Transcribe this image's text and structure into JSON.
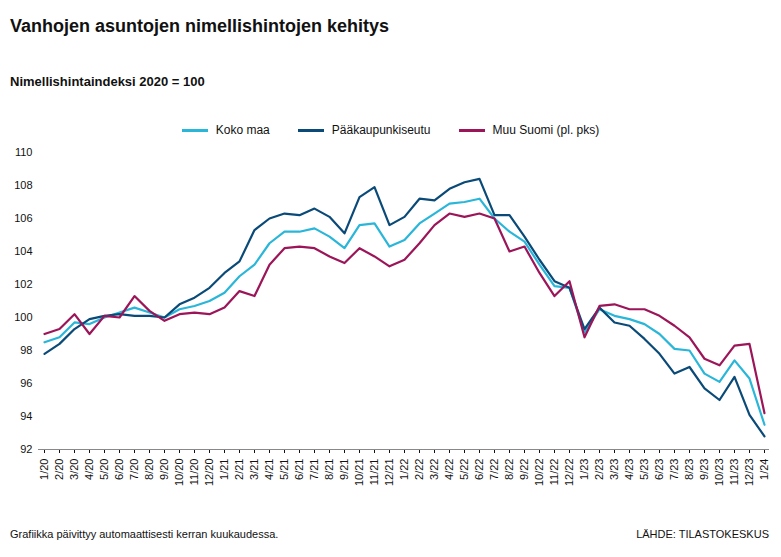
{
  "chart_data": {
    "type": "line",
    "title": "Vanhojen asuntojen nimellishintojen kehitys",
    "subtitle": "Nimellishintaindeksi 2020 = 100",
    "caption": "Grafiikka päivittyy automaattisesti kerran kuukaudessa.",
    "source": "LÄHDE: TILASTOKESKUS",
    "legend": "top",
    "grid": false,
    "categories": [
      "1/20",
      "2/20",
      "3/20",
      "4/20",
      "5/20",
      "6/20",
      "7/20",
      "8/20",
      "9/20",
      "10/20",
      "11/20",
      "12/20",
      "1/21",
      "2/21",
      "3/21",
      "4/21",
      "5/21",
      "6/21",
      "7/21",
      "8/21",
      "9/21",
      "10/21",
      "11/21",
      "12/21",
      "1/22",
      "2/22",
      "3/22",
      "4/22",
      "5/22",
      "6/22",
      "7/22",
      "8/22",
      "9/22",
      "10/22",
      "11/22",
      "12/22",
      "1/23",
      "2/23",
      "3/23",
      "4/23",
      "5/23",
      "6/23",
      "7/23",
      "8/23",
      "9/23",
      "10/23",
      "11/23",
      "12/23",
      "1/24"
    ],
    "ylim": [
      92,
      110
    ],
    "yticks": [
      92,
      94,
      96,
      98,
      100,
      102,
      104,
      106,
      108,
      110
    ],
    "series": [
      {
        "name": "Koko maa",
        "color": "#29b6d9",
        "values": [
          98.5,
          98.8,
          99.7,
          99.6,
          100.0,
          100.3,
          100.6,
          100.3,
          100.0,
          100.5,
          100.7,
          101.0,
          101.5,
          102.5,
          103.2,
          104.5,
          105.2,
          105.2,
          105.4,
          104.9,
          104.2,
          105.6,
          105.7,
          104.3,
          104.7,
          105.7,
          106.3,
          106.9,
          107.0,
          107.2,
          106.0,
          105.2,
          104.6,
          103.2,
          101.9,
          101.8,
          99.1,
          100.5,
          100.1,
          99.9,
          99.6,
          99.0,
          98.1,
          98.0,
          96.6,
          96.1,
          97.4,
          96.3,
          93.5
        ]
      },
      {
        "name": "Pääkaupunkiseutu",
        "color": "#0a4a78",
        "values": [
          97.8,
          98.4,
          99.3,
          99.9,
          100.1,
          100.2,
          100.1,
          100.1,
          100.0,
          100.8,
          101.2,
          101.8,
          102.7,
          103.4,
          105.3,
          106.0,
          106.3,
          106.2,
          106.6,
          106.1,
          105.1,
          107.3,
          107.9,
          105.6,
          106.1,
          107.2,
          107.1,
          107.8,
          108.2,
          108.4,
          106.2,
          106.2,
          104.9,
          103.5,
          102.2,
          101.8,
          99.3,
          100.6,
          99.7,
          99.5,
          98.7,
          97.8,
          96.6,
          97.0,
          95.7,
          95.0,
          96.4,
          94.1,
          92.8
        ]
      },
      {
        "name": "Muu Suomi (pl. pks)",
        "color": "#9c1559",
        "values": [
          99.0,
          99.3,
          100.2,
          99.0,
          100.1,
          100.0,
          101.3,
          100.4,
          99.8,
          100.2,
          100.3,
          100.2,
          100.6,
          101.6,
          101.3,
          103.2,
          104.2,
          104.3,
          104.2,
          103.7,
          103.3,
          104.2,
          103.7,
          103.1,
          103.5,
          104.5,
          105.6,
          106.3,
          106.1,
          106.3,
          106.0,
          104.0,
          104.3,
          102.7,
          101.3,
          102.2,
          98.8,
          100.7,
          100.8,
          100.5,
          100.5,
          100.1,
          99.5,
          98.8,
          97.5,
          97.1,
          98.3,
          98.4,
          94.2
        ]
      }
    ]
  }
}
